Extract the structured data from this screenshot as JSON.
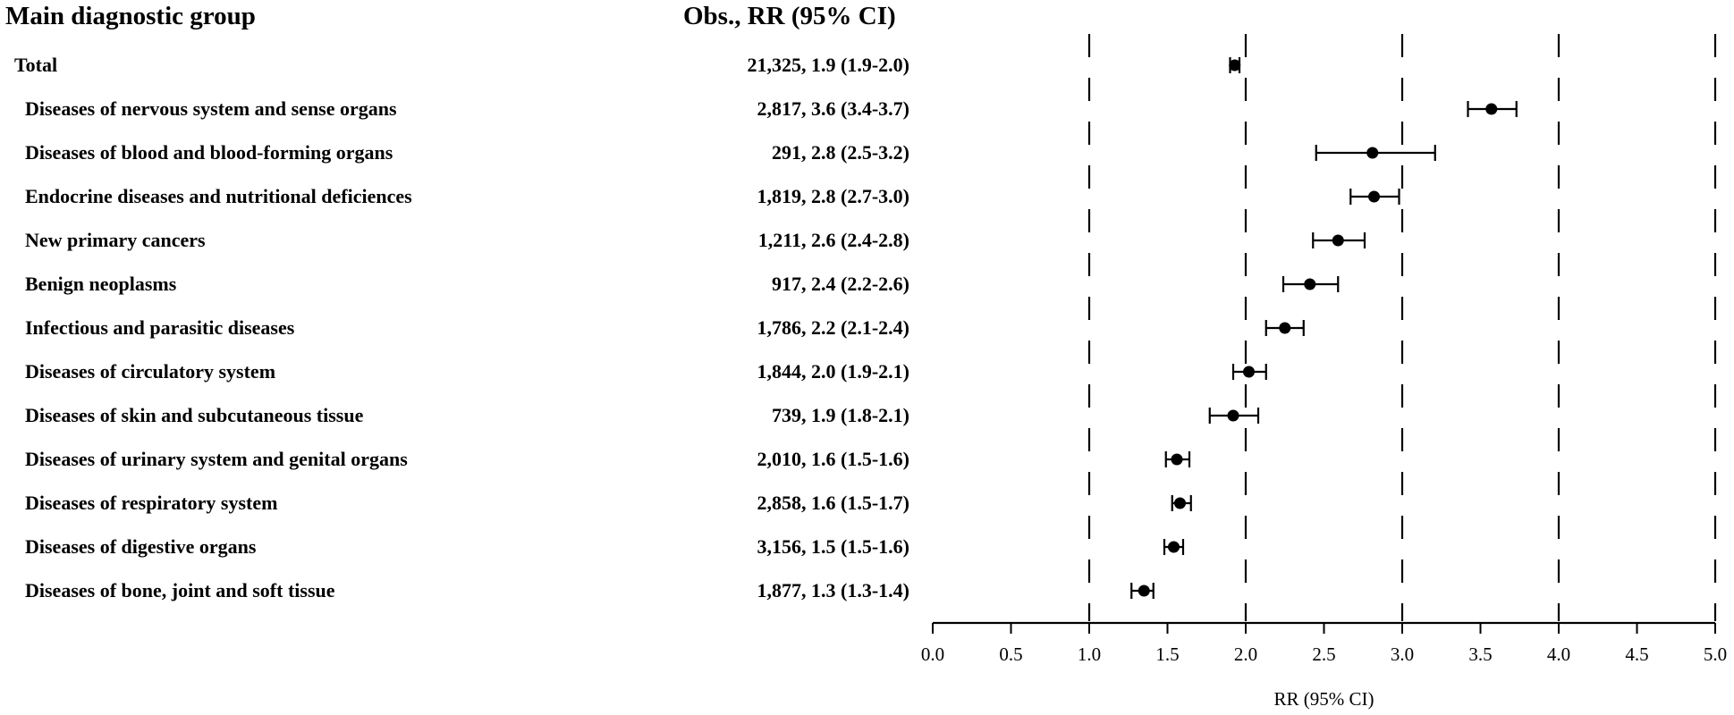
{
  "headers": {
    "group": "Main diagnostic group",
    "obs": "Obs., RR (95% CI)"
  },
  "chart_data": {
    "type": "forest",
    "xlabel": "RR (95% CI)",
    "xlim": [
      0.0,
      5.0
    ],
    "xticks": [
      "0.0",
      "0.5",
      "1.0",
      "1.5",
      "2.0",
      "2.5",
      "3.0",
      "3.5",
      "4.0",
      "4.5",
      "5.0"
    ],
    "reference_lines": [
      1.0,
      2.0,
      3.0,
      4.0,
      5.0
    ],
    "rows": [
      {
        "label": "Total",
        "value_text": "21,325, 1.9 (1.9-2.0)",
        "rr": 1.93,
        "lo": 1.9,
        "hi": 1.96
      },
      {
        "label": "Diseases of nervous system and sense organs",
        "value_text": "2,817, 3.6 (3.4-3.7)",
        "rr": 3.57,
        "lo": 3.42,
        "hi": 3.73
      },
      {
        "label": "Diseases of blood and blood-forming organs",
        "value_text": "291, 2.8 (2.5-3.2)",
        "rr": 2.81,
        "lo": 2.45,
        "hi": 3.21
      },
      {
        "label": "Endocrine diseases and nutritional deficiences",
        "value_text": "1,819, 2.8 (2.7-3.0)",
        "rr": 2.82,
        "lo": 2.67,
        "hi": 2.98
      },
      {
        "label": "New primary cancers",
        "value_text": "1,211, 2.6 (2.4-2.8)",
        "rr": 2.59,
        "lo": 2.43,
        "hi": 2.76
      },
      {
        "label": "Benign neoplasms",
        "value_text": "917, 2.4 (2.2-2.6)",
        "rr": 2.41,
        "lo": 2.24,
        "hi": 2.59
      },
      {
        "label": "Infectious and parasitic diseases",
        "value_text": "1,786, 2.2 (2.1-2.4)",
        "rr": 2.25,
        "lo": 2.13,
        "hi": 2.37
      },
      {
        "label": "Diseases of circulatory system",
        "value_text": "1,844, 2.0 (1.9-2.1)",
        "rr": 2.02,
        "lo": 1.92,
        "hi": 2.13
      },
      {
        "label": "Diseases of skin and subcutaneous tissue",
        "value_text": "739, 1.9 (1.8-2.1)",
        "rr": 1.92,
        "lo": 1.77,
        "hi": 2.08
      },
      {
        "label": "Diseases of urinary system and genital organs",
        "value_text": "2,010, 1.6 (1.5-1.6)",
        "rr": 1.56,
        "lo": 1.49,
        "hi": 1.64
      },
      {
        "label": "Diseases of respiratory system",
        "value_text": "2,858, 1.6 (1.5-1.7)",
        "rr": 1.58,
        "lo": 1.53,
        "hi": 1.65
      },
      {
        "label": "Diseases of digestive organs",
        "value_text": "3,156, 1.5 (1.5-1.6)",
        "rr": 1.54,
        "lo": 1.48,
        "hi": 1.6
      },
      {
        "label": "Diseases of bone, joint and soft tissue",
        "value_text": "1,877, 1.3 (1.3-1.4)",
        "rr": 1.35,
        "lo": 1.27,
        "hi": 1.41
      }
    ]
  }
}
